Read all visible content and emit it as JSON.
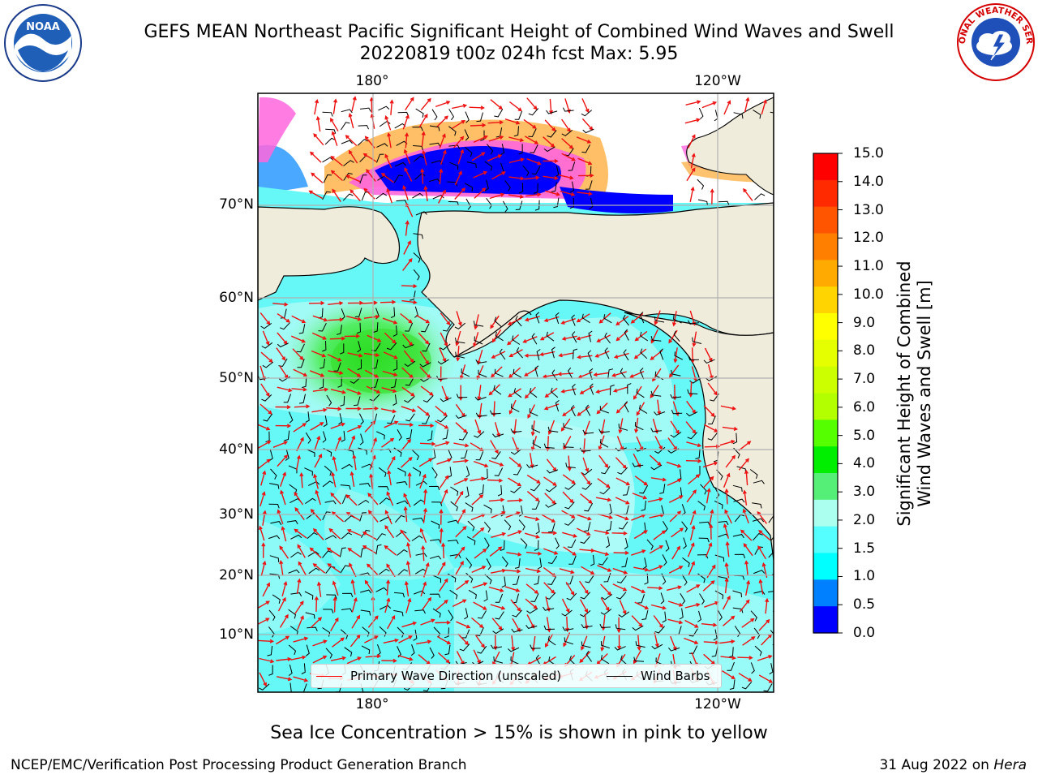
{
  "header": {
    "title_line1": "GEFS MEAN Northeast Pacific Significant Height of Combined Wind Waves and Swell",
    "title_line2": "20220819 t00z 024h fcst   Max: 5.95"
  },
  "logos": {
    "left": {
      "icon": "noaa-logo",
      "text": "NOAA"
    },
    "right": {
      "icon": "nws-logo",
      "text": "NATIONAL WEATHER SERVICE"
    }
  },
  "map": {
    "lon_labels": [
      "180°",
      "120°W"
    ],
    "lat_labels": [
      "70°N",
      "60°N",
      "50°N",
      "40°N",
      "30°N",
      "20°N",
      "10°N"
    ],
    "legend": {
      "wave_label": "Primary Wave Direction (unscaled)",
      "wind_label": "Wind Barbs",
      "wave_color": "#ff0000",
      "wind_color": "#000000"
    },
    "colors": {
      "land": "#efecdc",
      "ocean_base": "#66f7f7",
      "grid": "#b0b0b0"
    }
  },
  "colorbar": {
    "label_line1": "Significant Height of Combined",
    "label_line2": "Wind Waves and Swell [m]",
    "ticks": [
      "15.0",
      "14.0",
      "13.0",
      "12.0",
      "11.0",
      "10.0",
      "9.0",
      "8.0",
      "7.0",
      "6.0",
      "5.0",
      "4.0",
      "3.0",
      "2.0",
      "1.5",
      "1.0",
      "0.5",
      "0.0"
    ],
    "colors_top_to_bottom": [
      "#ff0000",
      "#ff2a00",
      "#ff5500",
      "#ff8000",
      "#ffaa00",
      "#ffd400",
      "#ffff00",
      "#e6ff00",
      "#ccff00",
      "#b3ff00",
      "#55ff00",
      "#00ee00",
      "#55ee77",
      "#aaffee",
      "#55ffff",
      "#00ffff",
      "#0080ff",
      "#0000ff"
    ]
  },
  "caption": "Sea Ice Concentration > 15% is shown in pink to yellow",
  "footer": {
    "left": "NCEP/EMC/Verification Post Processing Product Generation Branch",
    "right_date": "31 Aug 2022 on",
    "right_machine": "Hera"
  }
}
